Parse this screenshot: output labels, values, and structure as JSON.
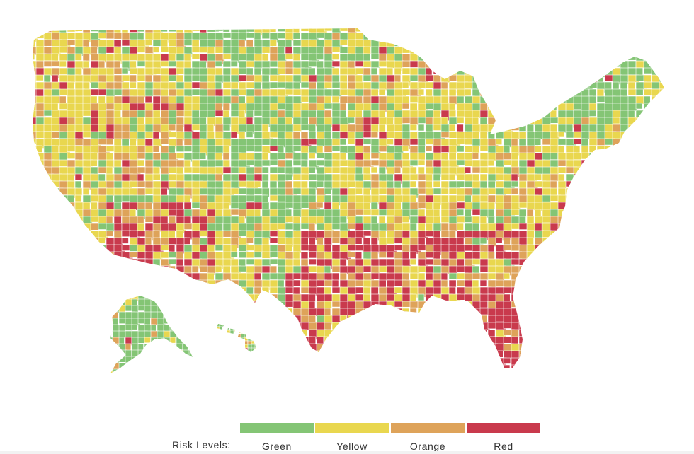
{
  "colors": {
    "green": "#84c575",
    "yellow": "#e9d74f",
    "orange": "#dea35a",
    "red": "#c93a4d",
    "border": "#ffffff"
  },
  "legend": {
    "title": "Risk Levels:",
    "items": [
      {
        "key": "green",
        "label": "Green",
        "color": "#84c575"
      },
      {
        "key": "yellow",
        "label": "Yellow",
        "color": "#e9d74f"
      },
      {
        "key": "orange",
        "label": "Orange",
        "color": "#dea35a"
      },
      {
        "key": "red",
        "label": "Red",
        "color": "#c93a4d"
      }
    ]
  }
}
